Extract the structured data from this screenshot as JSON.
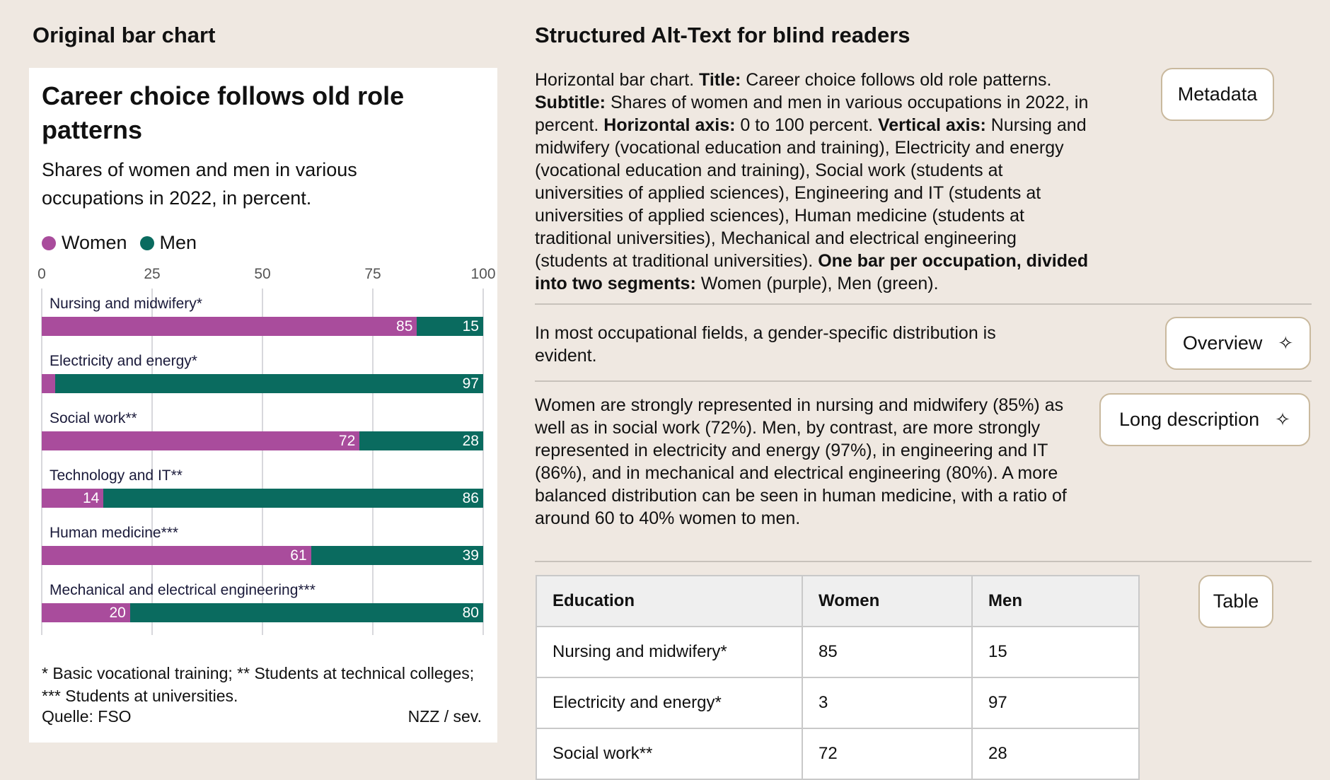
{
  "left_heading": "Original bar chart",
  "right_heading": "Structured Alt-Text for blind readers",
  "chart_data": {
    "type": "bar",
    "orientation": "horizontal",
    "stacked": true,
    "title": "Career choice follows old role patterns",
    "subtitle": "Shares of women and men in various occupations in 2022, in percent.",
    "xlim": [
      0,
      100
    ],
    "ticks": [
      "0",
      "25",
      "50",
      "75",
      "100"
    ],
    "grid": true,
    "legend_placement": "top-left",
    "categories": [
      "Nursing and midwifery*",
      "Electricity and energy*",
      "Social work**",
      "Technology and IT**",
      "Human medicine***",
      "Mechanical and electrical engineering***"
    ],
    "series": [
      {
        "name": "Women",
        "color": "#a94c9c",
        "values": [
          85,
          3,
          72,
          14,
          61,
          20
        ],
        "labels": [
          "85",
          "",
          "72",
          "14",
          "61",
          "20"
        ]
      },
      {
        "name": "Men",
        "color": "#0a6b5f",
        "values": [
          15,
          97,
          28,
          86,
          39,
          80
        ],
        "labels": [
          "15",
          "97",
          "28",
          "86",
          "39",
          "80"
        ]
      }
    ],
    "footnote": "* Basic vocational training; ** Students at technical colleges; *** Students at universities.",
    "source": "Quelle: FSO",
    "credit": "NZZ / sev."
  },
  "alt": {
    "p1": [
      {
        "t": "Horizontal bar chart. ",
        "b": false
      },
      {
        "t": "Title:",
        "b": true
      },
      {
        "t": " Career choice follows old role patterns. ",
        "b": false
      },
      {
        "t": "Subtitle:",
        "b": true
      },
      {
        "t": " Shares of women and men in various occupations in 2022, in percent. ",
        "b": false
      },
      {
        "t": "Horizontal axis:",
        "b": true
      },
      {
        "t": " 0 to 100 percent. ",
        "b": false
      },
      {
        "t": "Vertical axis:",
        "b": true
      },
      {
        "t": " Nursing and midwifery (vocational education and training), Electricity and energy (vocational education and training), Social work (students at universities of applied sciences), Engineering and IT (students at universities of applied sciences), Human medicine (students at traditional universities), Mechanical and electrical engineering (students at traditional universities). ",
        "b": false
      },
      {
        "t": "One bar per occupation, divided into two segments:",
        "b": true
      },
      {
        "t": " Women (purple), Men (green).",
        "b": false
      }
    ],
    "overview": "In most occupational fields, a gender-specific distribution is evident.",
    "long": "Women are strongly represented in nursing and midwifery (85%) as well as in social work (72%). Men, by contrast, are more strongly represented in electricity and energy (97%), in engineering and IT (86%), and in mechanical and electrical engineering (80%). A more balanced distribution can be seen in human medicine, with a ratio of around 60 to 40% women to men.",
    "buttons": {
      "metadata": "Metadata",
      "overview": "Overview",
      "long": "Long description",
      "table": "Table"
    },
    "table": {
      "headers": [
        "Education",
        "Women",
        "Men"
      ],
      "rows": [
        [
          "Nursing and midwifery*",
          "85",
          "15"
        ],
        [
          "Electricity and energy*",
          "3",
          "97"
        ],
        [
          "Social work**",
          "72",
          "28"
        ]
      ]
    }
  }
}
